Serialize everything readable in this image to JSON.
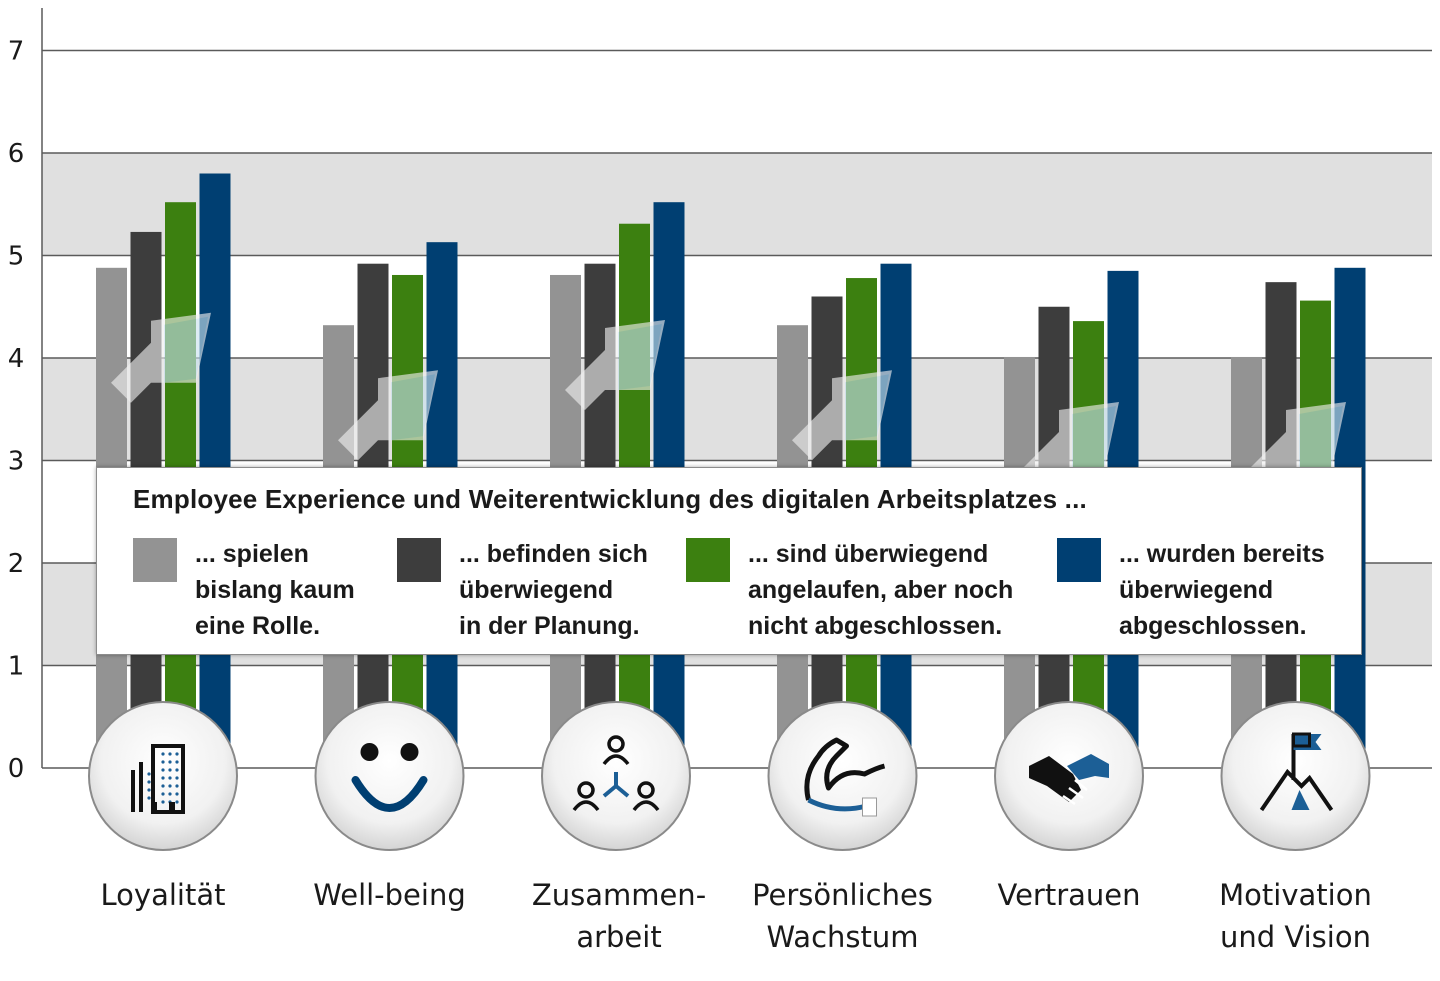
{
  "chart_data": {
    "type": "bar",
    "title": "",
    "xlabel": "",
    "ylabel": "",
    "ylim": [
      0,
      7
    ],
    "yticks": [
      0,
      1,
      2,
      3,
      4,
      5,
      6,
      7
    ],
    "grid": "horizontal bands",
    "categories": [
      {
        "label": "Loyalität",
        "lines": [
          "Loyalität"
        ],
        "icon": "office-building-icon"
      },
      {
        "label": "Well-being",
        "lines": [
          "Well-being"
        ],
        "icon": "smiley-face-icon"
      },
      {
        "label": "Zusammen-arbeit",
        "lines": [
          "Zusammen-",
          "arbeit"
        ],
        "icon": "team-network-icon"
      },
      {
        "label": "Persönliches Wachstum",
        "lines": [
          "Persönliches",
          "Wachstum"
        ],
        "icon": "flexed-arm-icon"
      },
      {
        "label": "Vertrauen",
        "lines": [
          "Vertrauen"
        ],
        "icon": "handshake-icon"
      },
      {
        "label": "Motivation und Vision",
        "lines": [
          "Motivation",
          "und Vision"
        ],
        "icon": "mountain-flag-icon"
      }
    ],
    "legend": {
      "title": "Employee Experience und Weiterentwicklung des digitalen Arbeitsplatzes ...",
      "placement": "center overlay"
    },
    "series": [
      {
        "name": "... spielen bislang kaum eine Rolle.",
        "lines": [
          "... spielen",
          "bislang kaum",
          "eine Rolle."
        ],
        "color": "#939393",
        "values": [
          4.88,
          4.32,
          4.81,
          4.32,
          4.01,
          4.01
        ]
      },
      {
        "name": "... befinden sich überwiegend in der Planung.",
        "lines": [
          "... befinden sich",
          "überwiegend",
          "in der Planung."
        ],
        "color": "#3d3d3d",
        "values": [
          5.23,
          4.92,
          4.92,
          4.6,
          4.5,
          4.74
        ]
      },
      {
        "name": "... sind überwiegend angelaufen, aber noch nicht abgeschlossen.",
        "lines": [
          "... sind überwiegend",
          "angelaufen, aber noch",
          "nicht abgeschlossen."
        ],
        "color": "#3c8010",
        "values": [
          5.52,
          4.81,
          5.31,
          4.78,
          4.36,
          4.56
        ]
      },
      {
        "name": "... wurden bereits überwiegend abgeschlossen.",
        "lines": [
          "... wurden bereits",
          "überwiegend",
          "abgeschlossen."
        ],
        "color": "#003f72",
        "values": [
          5.8,
          5.13,
          5.52,
          4.92,
          4.85,
          4.88
        ]
      }
    ]
  }
}
